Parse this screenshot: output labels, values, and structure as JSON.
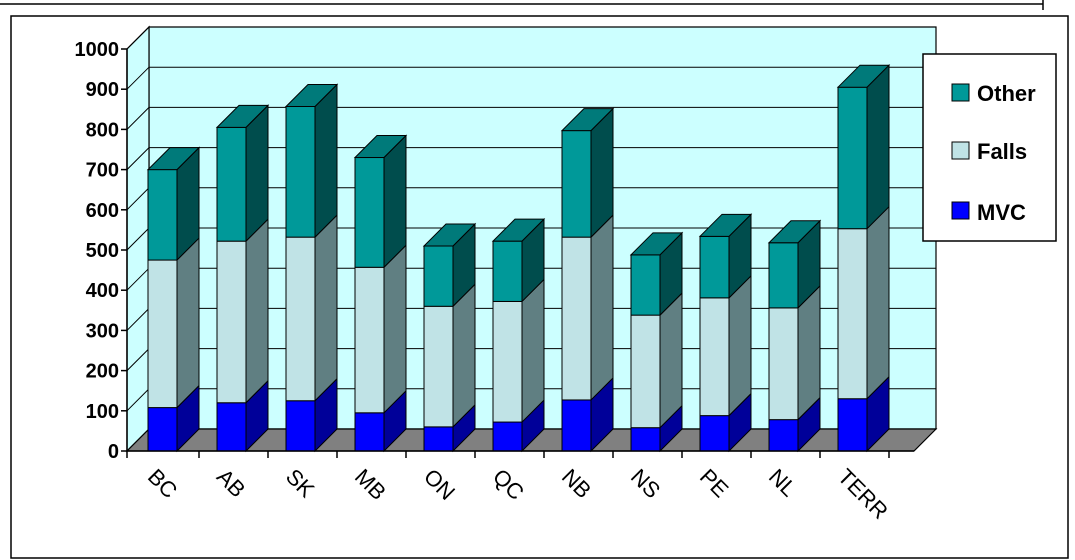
{
  "chart_data": {
    "type": "bar",
    "stacked": true,
    "style": "3d",
    "categories": [
      "BC",
      "AB",
      "SK",
      "MB",
      "ON",
      "QC",
      "NB",
      "NS",
      "PE",
      "NL",
      "TERR"
    ],
    "series": [
      {
        "name": "MVC",
        "values": [
          108,
          120,
          125,
          95,
          60,
          72,
          127,
          58,
          88,
          78,
          130
        ]
      },
      {
        "name": "Falls",
        "values": [
          367,
          402,
          407,
          362,
          300,
          300,
          405,
          280,
          293,
          278,
          423
        ]
      },
      {
        "name": "Other",
        "values": [
          225,
          283,
          325,
          273,
          150,
          150,
          265,
          150,
          153,
          162,
          352
        ]
      }
    ],
    "ylim": [
      0,
      1000
    ],
    "yticks": [
      "0",
      "100",
      "200",
      "300",
      "400",
      "500",
      "600",
      "700",
      "800",
      "900",
      "1000"
    ],
    "title": "",
    "xlabel": "",
    "ylabel": "",
    "grid": true,
    "legend_position": "right",
    "legend_order": [
      "Other",
      "Falls",
      "MVC"
    ],
    "colors": {
      "MVC": {
        "front": "#0000ff",
        "side": "#000099",
        "top": "#0000cc"
      },
      "Falls": {
        "front": "#c0e3e6",
        "side": "#607f82",
        "top": "#8fb3b6"
      },
      "Other": {
        "front": "#009999",
        "side": "#004d4d",
        "top": "#007a7a"
      },
      "plot_background": "#ccffff",
      "floor": "#808080"
    }
  }
}
